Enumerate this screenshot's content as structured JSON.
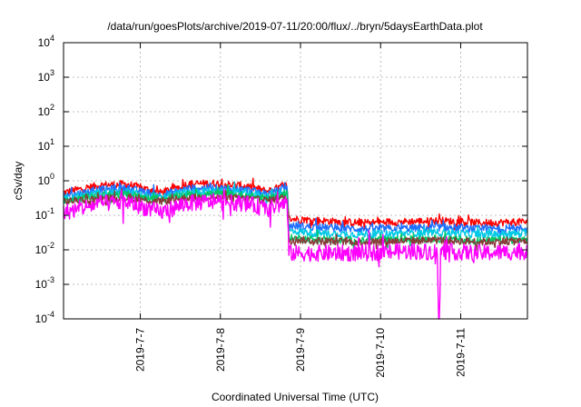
{
  "chart_data": {
    "type": "line",
    "title": "/data/run/goesPlots/archive/2019-07-11/20:00/flux/../bryn/5daysEarthData.plot",
    "xlabel": "Coordinated Universal Time (UTC)",
    "ylabel": "cSv/day",
    "yscale": "log",
    "ylim": [
      0.0001,
      10000
    ],
    "xlim": [
      "2019-07-06T01:00",
      "2019-07-11T20:00"
    ],
    "yticks": [
      {
        "value": 0.0001,
        "base": "10",
        "exp": "-4"
      },
      {
        "value": 0.001,
        "base": "10",
        "exp": "-3"
      },
      {
        "value": 0.01,
        "base": "10",
        "exp": "-2"
      },
      {
        "value": 0.1,
        "base": "10",
        "exp": "-1"
      },
      {
        "value": 1,
        "base": "10",
        "exp": "0"
      },
      {
        "value": 10,
        "base": "10",
        "exp": "1"
      },
      {
        "value": 100,
        "base": "10",
        "exp": "2"
      },
      {
        "value": 1000,
        "base": "10",
        "exp": "3"
      },
      {
        "value": 10000,
        "base": "10",
        "exp": "4"
      }
    ],
    "xticks": [
      {
        "value": "2019-07-07T00:00",
        "label": "2019-7-7"
      },
      {
        "value": "2019-07-08T00:00",
        "label": "2019-7-8"
      },
      {
        "value": "2019-07-09T00:00",
        "label": "2019-7-9"
      },
      {
        "value": "2019-07-10T00:00",
        "label": "2019-7-10"
      },
      {
        "value": "2019-07-11T00:00",
        "label": "2019-7-11"
      }
    ],
    "grid": true,
    "legend": "none",
    "series": [
      {
        "color": "#ff0000",
        "x": [
          "2019-07-06T01:00",
          "2019-07-06T05:00",
          "2019-07-06T12:00",
          "2019-07-06T20:00",
          "2019-07-07T06:00",
          "2019-07-07T14:00",
          "2019-07-07T22:00",
          "2019-07-08T08:00",
          "2019-07-08T14:00",
          "2019-07-08T20:00",
          "2019-07-08T20:30",
          "2019-07-09T06:00",
          "2019-07-09T18:00",
          "2019-07-10T06:00",
          "2019-07-10T18:00",
          "2019-07-11T06:00",
          "2019-07-11T20:00"
        ],
        "y": [
          0.45,
          0.55,
          0.75,
          0.8,
          0.45,
          0.8,
          0.85,
          0.7,
          0.5,
          0.75,
          0.08,
          0.07,
          0.06,
          0.065,
          0.07,
          0.06,
          0.065
        ]
      },
      {
        "color": "#1f6fff",
        "x": [
          "2019-07-06T01:00",
          "2019-07-06T05:00",
          "2019-07-06T12:00",
          "2019-07-06T20:00",
          "2019-07-07T06:00",
          "2019-07-07T14:00",
          "2019-07-07T22:00",
          "2019-07-08T08:00",
          "2019-07-08T14:00",
          "2019-07-08T20:00",
          "2019-07-08T20:30",
          "2019-07-09T06:00",
          "2019-07-09T18:00",
          "2019-07-10T06:00",
          "2019-07-10T18:00",
          "2019-07-11T06:00",
          "2019-07-11T20:00"
        ],
        "y": [
          0.38,
          0.42,
          0.55,
          0.6,
          0.38,
          0.6,
          0.62,
          0.55,
          0.42,
          0.6,
          0.05,
          0.045,
          0.04,
          0.042,
          0.045,
          0.04,
          0.042
        ]
      },
      {
        "color": "#00c8e6",
        "x": [
          "2019-07-06T01:00",
          "2019-07-06T05:00",
          "2019-07-06T12:00",
          "2019-07-06T20:00",
          "2019-07-07T06:00",
          "2019-07-07T14:00",
          "2019-07-07T22:00",
          "2019-07-08T08:00",
          "2019-07-08T14:00",
          "2019-07-08T20:00",
          "2019-07-08T20:30",
          "2019-07-09T06:00",
          "2019-07-09T18:00",
          "2019-07-10T06:00",
          "2019-07-10T18:00",
          "2019-07-11T06:00",
          "2019-07-11T20:00"
        ],
        "y": [
          0.32,
          0.35,
          0.45,
          0.48,
          0.32,
          0.48,
          0.5,
          0.45,
          0.35,
          0.5,
          0.035,
          0.03,
          0.028,
          0.03,
          0.032,
          0.028,
          0.03
        ]
      },
      {
        "color": "#00c864",
        "x": [
          "2019-07-06T01:00",
          "2019-07-06T05:00",
          "2019-07-06T12:00",
          "2019-07-06T20:00",
          "2019-07-07T06:00",
          "2019-07-07T14:00",
          "2019-07-07T22:00",
          "2019-07-08T08:00",
          "2019-07-08T14:00",
          "2019-07-08T20:00",
          "2019-07-08T20:30",
          "2019-07-09T06:00",
          "2019-07-09T18:00",
          "2019-07-10T06:00",
          "2019-07-10T18:00",
          "2019-07-11T06:00",
          "2019-07-11T20:00"
        ],
        "y": [
          0.28,
          0.3,
          0.38,
          0.4,
          0.28,
          0.4,
          0.42,
          0.38,
          0.3,
          0.42,
          0.022,
          0.02,
          0.018,
          0.02,
          0.021,
          0.018,
          0.02
        ]
      },
      {
        "color": "#8b3a3a",
        "x": [
          "2019-07-06T01:00",
          "2019-07-06T05:00",
          "2019-07-06T12:00",
          "2019-07-06T20:00",
          "2019-07-07T06:00",
          "2019-07-07T14:00",
          "2019-07-07T22:00",
          "2019-07-08T08:00",
          "2019-07-08T14:00",
          "2019-07-08T20:00",
          "2019-07-08T20:30",
          "2019-07-09T06:00",
          "2019-07-09T18:00",
          "2019-07-10T06:00",
          "2019-07-10T18:00",
          "2019-07-11T06:00",
          "2019-07-11T20:00"
        ],
        "y": [
          0.25,
          0.27,
          0.3,
          0.32,
          0.25,
          0.32,
          0.33,
          0.3,
          0.27,
          0.33,
          0.02,
          0.018,
          0.017,
          0.018,
          0.019,
          0.017,
          0.018
        ]
      },
      {
        "color": "#ff00ff",
        "x": [
          "2019-07-06T01:00",
          "2019-07-06T05:00",
          "2019-07-06T12:00",
          "2019-07-06T20:00",
          "2019-07-07T06:00",
          "2019-07-07T14:00",
          "2019-07-07T22:00",
          "2019-07-08T08:00",
          "2019-07-08T14:00",
          "2019-07-08T20:00",
          "2019-07-08T20:30",
          "2019-07-09T06:00",
          "2019-07-09T18:00",
          "2019-07-10T06:00",
          "2019-07-10T17:00",
          "2019-07-10T17:20",
          "2019-07-10T17:40",
          "2019-07-10T18:00",
          "2019-07-11T06:00",
          "2019-07-11T20:00"
        ],
        "y": [
          0.12,
          0.15,
          0.22,
          0.24,
          0.12,
          0.22,
          0.25,
          0.22,
          0.15,
          0.24,
          0.008,
          0.008,
          0.008,
          0.009,
          0.009,
          0.0001,
          0.0001,
          0.009,
          0.008,
          0.009
        ]
      }
    ]
  }
}
